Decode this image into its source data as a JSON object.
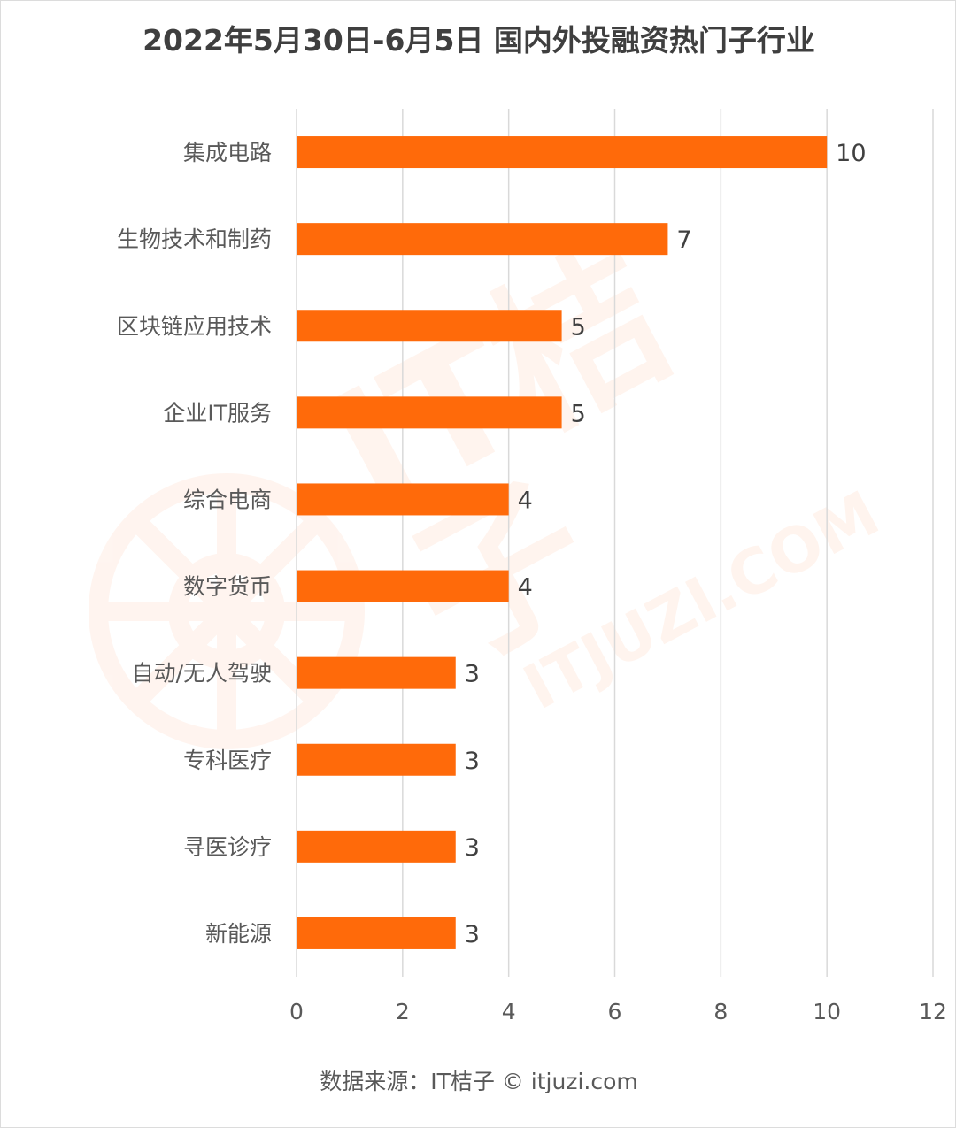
{
  "chart_data": {
    "type": "bar",
    "orientation": "horizontal",
    "title": "2022年5月30日-6月5日 国内外投融资热门子行业",
    "xlabel": "",
    "ylabel": "",
    "xlim": [
      0,
      12
    ],
    "xticks": [
      0,
      2,
      4,
      6,
      8,
      10,
      12
    ],
    "grid": true,
    "categories": [
      "集成电路",
      "生物技术和制药",
      "区块链应用技术",
      "企业IT服务",
      "综合电商",
      "数字货币",
      "自动/无人驾驶",
      "专科医疗",
      "寻医诊疗",
      "新能源"
    ],
    "values": [
      10,
      7,
      5,
      5,
      4,
      4,
      3,
      3,
      3,
      3
    ],
    "bar_color": "#ff6a0a",
    "data_labels": true
  },
  "source": "数据来源：IT桔子 © itjuzi.com",
  "watermark": {
    "main": "IT桔子",
    "sub": "ITJUZI.COM",
    "color": "#ff6e28"
  }
}
